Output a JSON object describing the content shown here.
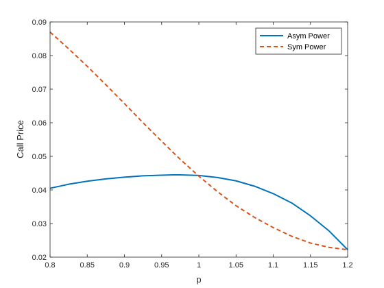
{
  "chart_data": {
    "type": "line",
    "title": "",
    "xlabel": "p",
    "ylabel": "Call Price",
    "xlim": [
      0.8,
      1.2
    ],
    "ylim": [
      0.02,
      0.09
    ],
    "xticks": [
      0.8,
      0.85,
      0.9,
      0.95,
      1,
      1.05,
      1.1,
      1.15,
      1.2
    ],
    "xtick_labels": [
      "0.8",
      "0.85",
      "0.9",
      "0.95",
      "1",
      "1.05",
      "1.1",
      "1.15",
      "1.2"
    ],
    "yticks": [
      0.02,
      0.03,
      0.04,
      0.05,
      0.06,
      0.07,
      0.08,
      0.09
    ],
    "ytick_labels": [
      "0.02",
      "0.03",
      "0.04",
      "0.05",
      "0.06",
      "0.07",
      "0.08",
      "0.09"
    ],
    "grid": false,
    "legend_position": "top-right",
    "series": [
      {
        "name": "Asym Power",
        "color": "#0072BD",
        "style": "solid",
        "x": [
          0.8,
          0.825,
          0.85,
          0.875,
          0.9,
          0.925,
          0.95,
          0.965,
          0.975,
          1.0,
          1.025,
          1.05,
          1.075,
          1.1,
          1.125,
          1.15,
          1.175,
          1.2
        ],
        "y": [
          0.0405,
          0.0417,
          0.0426,
          0.0433,
          0.0438,
          0.0442,
          0.0444,
          0.0445,
          0.0445,
          0.0443,
          0.0437,
          0.0427,
          0.0411,
          0.0389,
          0.0361,
          0.0323,
          0.0278,
          0.0222
        ]
      },
      {
        "name": "Sym Power",
        "color": "#D95319",
        "style": "dashed",
        "x": [
          0.8,
          0.825,
          0.85,
          0.875,
          0.9,
          0.925,
          0.95,
          0.975,
          1.0,
          1.025,
          1.05,
          1.075,
          1.1,
          1.125,
          1.15,
          1.175,
          1.2
        ],
        "y": [
          0.087,
          0.082,
          0.0768,
          0.0713,
          0.0657,
          0.06,
          0.0545,
          0.0491,
          0.0441,
          0.0395,
          0.0353,
          0.0318,
          0.0288,
          0.0262,
          0.0242,
          0.0229,
          0.0222
        ]
      }
    ]
  }
}
